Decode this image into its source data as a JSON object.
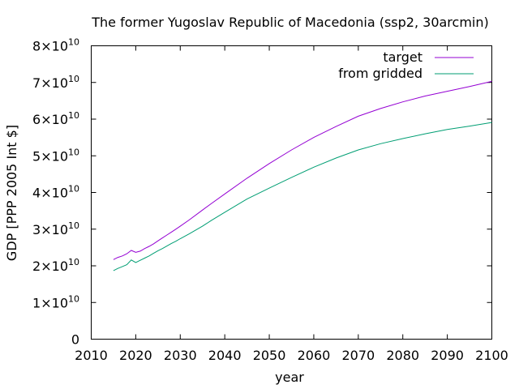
{
  "chart_data": {
    "type": "line",
    "title": "The former Yugoslav Republic of Macedonia (ssp2, 30arcmin)",
    "xlabel": "year",
    "ylabel": "GDP [PPP 2005 Int $]",
    "xlim": [
      2010,
      2100
    ],
    "ylim": [
      0,
      80000000000
    ],
    "x_ticks": [
      "2010",
      "2020",
      "2030",
      "2040",
      "2050",
      "2060",
      "2070",
      "2080",
      "2090",
      "2100"
    ],
    "y_ticks": [
      {
        "value": 0,
        "mantissa": "0",
        "exponent": ""
      },
      {
        "value": 10000000000,
        "mantissa": "1×10",
        "exponent": "10"
      },
      {
        "value": 20000000000,
        "mantissa": "2×10",
        "exponent": "10"
      },
      {
        "value": 30000000000,
        "mantissa": "3×10",
        "exponent": "10"
      },
      {
        "value": 40000000000,
        "mantissa": "4×10",
        "exponent": "10"
      },
      {
        "value": 50000000000,
        "mantissa": "5×10",
        "exponent": "10"
      },
      {
        "value": 60000000000,
        "mantissa": "6×10",
        "exponent": "10"
      },
      {
        "value": 70000000000,
        "mantissa": "7×10",
        "exponent": "10"
      },
      {
        "value": 80000000000,
        "mantissa": "8×10",
        "exponent": "10"
      }
    ],
    "grid": false,
    "legend_position": "top-right",
    "x": [
      2015,
      2016,
      2017,
      2018,
      2019,
      2020,
      2021,
      2022,
      2023,
      2024,
      2025,
      2026,
      2027,
      2028,
      2029,
      2030,
      2032,
      2035,
      2037,
      2040,
      2045,
      2050,
      2055,
      2060,
      2065,
      2070,
      2075,
      2080,
      2085,
      2090,
      2095,
      2100
    ],
    "series": [
      {
        "name": "target",
        "color": "#9400d3",
        "values": [
          21.7,
          22.3,
          22.7,
          23.3,
          24.2,
          23.7,
          24.0,
          24.7,
          25.3,
          26.0,
          26.8,
          27.6,
          28.4,
          29.2,
          30.0,
          30.8,
          32.5,
          35.2,
          37.0,
          39.6,
          43.9,
          47.9,
          51.6,
          55.0,
          58.0,
          60.8,
          62.9,
          64.7,
          66.3,
          67.6,
          68.9,
          70.3
        ]
      },
      {
        "name": "from gridded",
        "color": "#009e73",
        "values": [
          18.7,
          19.3,
          19.8,
          20.3,
          21.6,
          20.9,
          21.5,
          22.1,
          22.7,
          23.4,
          24.1,
          24.7,
          25.4,
          26.1,
          26.7,
          27.4,
          28.7,
          30.8,
          32.4,
          34.6,
          38.2,
          41.2,
          44.1,
          46.9,
          49.4,
          51.6,
          53.3,
          54.7,
          56.0,
          57.2,
          58.1,
          59.1
        ]
      }
    ],
    "value_scale_note_units": "1e9"
  }
}
